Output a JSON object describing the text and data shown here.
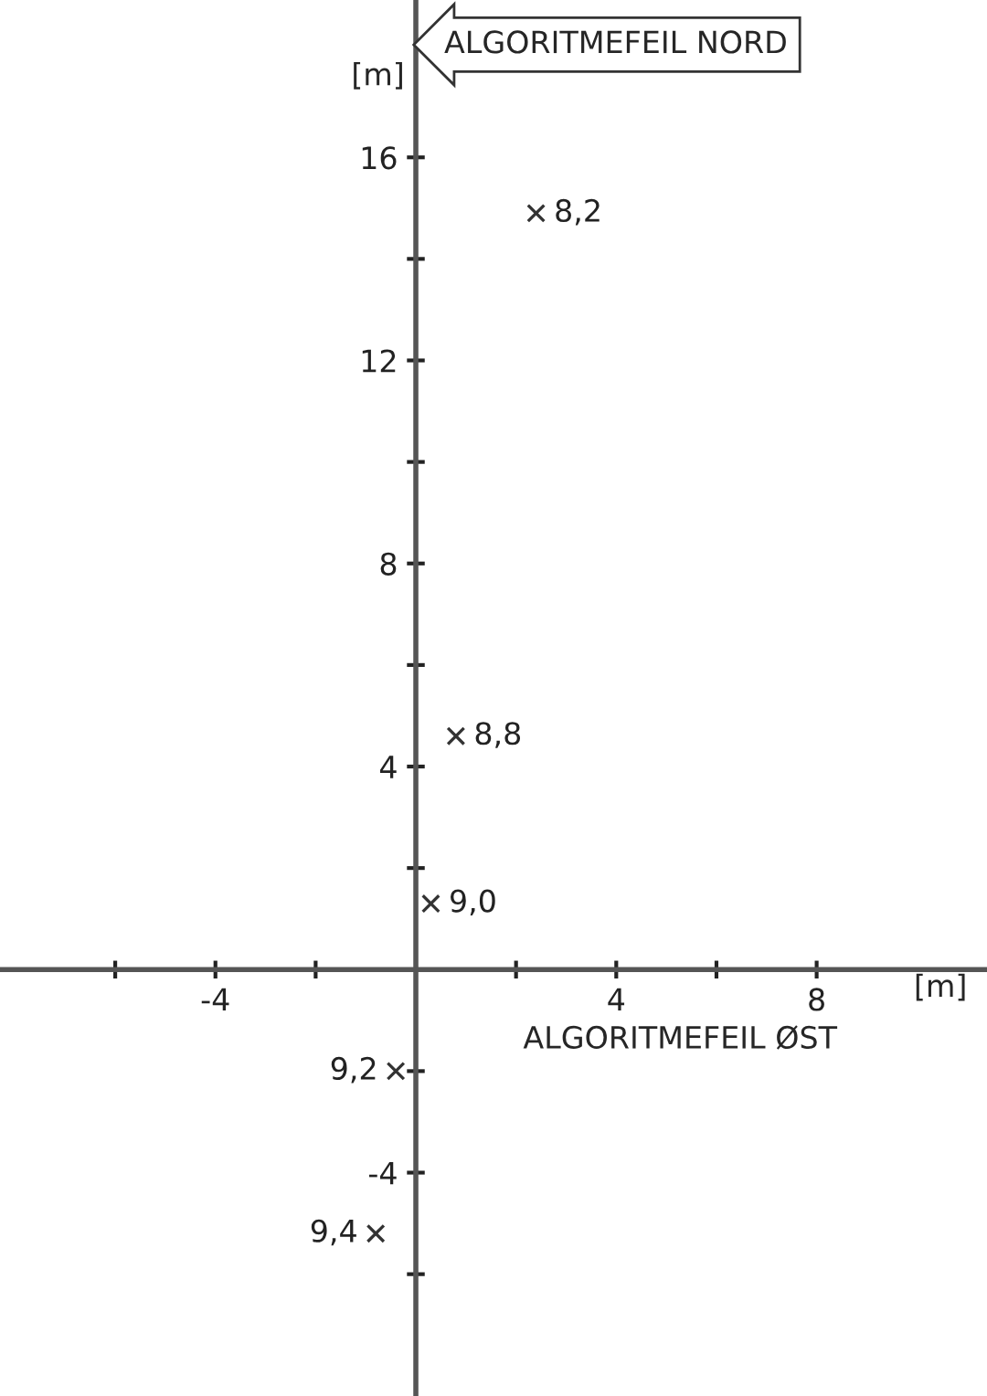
{
  "chart_data": {
    "type": "scatter",
    "xlabel": "ALGORITMEFEIL ØST",
    "ylabel": "ALGORITMEFEIL NORD",
    "annotations": [
      "[m]",
      "[m]",
      {
        "text": "8,2",
        "x": 2.4,
        "y": 14.9
      },
      {
        "text": "8,8",
        "x": 0.8,
        "y": 4.6
      },
      {
        "text": "9,0",
        "x": 0.3,
        "y": 1.3
      },
      {
        "text": "9,2",
        "x": -0.4,
        "y": -2.0
      },
      {
        "text": "9,4",
        "x": -0.8,
        "y": -5.2
      }
    ],
    "x": [
      2.4,
      0.8,
      0.3,
      -0.4,
      -0.8
    ],
    "series": [
      {
        "color": "#333333",
        "values": [
          14.9,
          4.6,
          1.3,
          -2.0,
          -5.2
        ]
      }
    ],
    "marker": "cross",
    "grid": false,
    "xlim": [
      -8.3,
      11.4
    ],
    "ylim": [
      -8.4,
      19.1
    ],
    "xticks": [
      {
        "value": -6,
        "label": null
      },
      -4,
      {
        "value": -2,
        "label": null
      },
      {
        "value": 2,
        "label": null
      },
      4,
      {
        "value": 6,
        "label": null
      },
      8
    ],
    "yticks": [
      {
        "value": -6,
        "label": null
      },
      -4,
      {
        "value": -2,
        "label": null
      },
      {
        "value": 2,
        "label": null
      },
      4,
      {
        "value": 6,
        "label": null
      },
      8,
      {
        "value": 10,
        "label": null
      },
      12,
      {
        "value": 14,
        "label": null
      },
      16
    ]
  }
}
